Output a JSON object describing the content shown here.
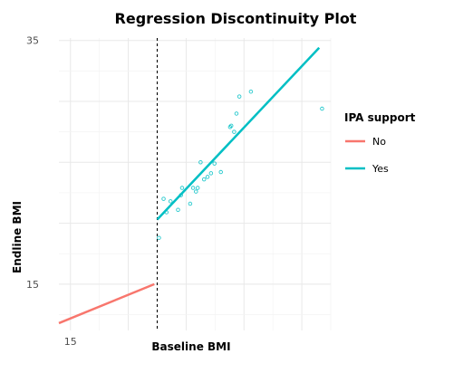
{
  "chart_data": {
    "type": "scatter",
    "title": "Regression Discontinuity Plot",
    "xlabel": "Baseline BMI",
    "ylabel": "Endline BMI",
    "x_ticks": [
      15
    ],
    "y_ticks": [
      15,
      35
    ],
    "xlim": [
      14.8,
      19.5
    ],
    "ylim": [
      11.2,
      35.2
    ],
    "cutoff": 16.5,
    "grid": true,
    "legend": {
      "title": "IPA support",
      "position": "right",
      "entries": [
        {
          "label": "No",
          "color": "#F8766D"
        },
        {
          "label": "Yes",
          "color": "#00BFC4"
        }
      ]
    },
    "series": [
      {
        "name": "No",
        "color": "#F8766D",
        "fit_line": [
          [
            14.8,
            11.8
          ],
          [
            16.45,
            15.0
          ]
        ]
      },
      {
        "name": "Yes",
        "color": "#00BFC4",
        "fit_line": [
          [
            16.5,
            20.3
          ],
          [
            19.3,
            34.4
          ]
        ],
        "points": [
          [
            16.53,
            18.8
          ],
          [
            16.61,
            22.0
          ],
          [
            16.66,
            20.9
          ],
          [
            16.73,
            21.8
          ],
          [
            16.86,
            21.1
          ],
          [
            16.91,
            22.3
          ],
          [
            16.93,
            22.9
          ],
          [
            17.07,
            21.6
          ],
          [
            17.12,
            22.9
          ],
          [
            17.17,
            22.6
          ],
          [
            17.2,
            22.9
          ],
          [
            17.25,
            25.0
          ],
          [
            17.31,
            23.6
          ],
          [
            17.37,
            23.8
          ],
          [
            17.43,
            24.1
          ],
          [
            17.49,
            24.9
          ],
          [
            17.6,
            24.2
          ],
          [
            17.76,
            27.9
          ],
          [
            17.78,
            28.0
          ],
          [
            17.83,
            27.5
          ],
          [
            17.87,
            29.0
          ],
          [
            17.92,
            30.4
          ],
          [
            18.12,
            30.8
          ],
          [
            19.35,
            29.4
          ]
        ]
      }
    ]
  }
}
